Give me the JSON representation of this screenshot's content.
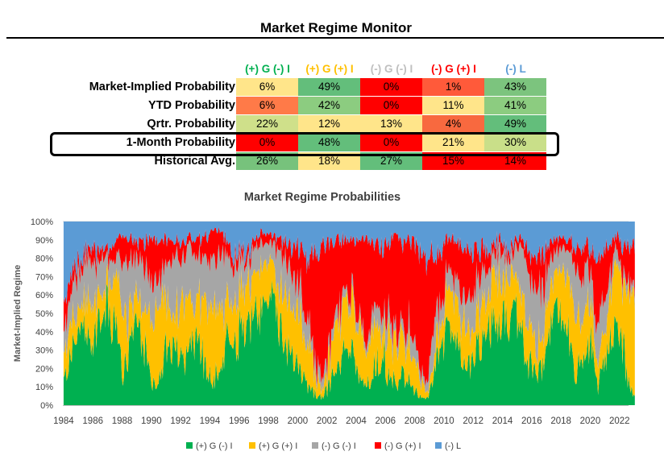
{
  "page_title": "Market Regime Monitor",
  "table": {
    "headers": [
      {
        "label": "(+) G (-) I",
        "color": "#00b050"
      },
      {
        "label": "(+) G (+) I",
        "color": "#ffc000"
      },
      {
        "label": "(-) G (-) I",
        "color": "#bfbfbf"
      },
      {
        "label": "(-) G (+) I",
        "color": "#ff0000"
      },
      {
        "label": "(-) L",
        "color": "#5b9bd5"
      }
    ],
    "rows": [
      {
        "label": "Market-Implied Probability",
        "values": [
          "6%",
          "49%",
          "0%",
          "1%",
          "43%"
        ],
        "colors": [
          "#ffe58a",
          "#63be7b",
          "#ff0000",
          "#ff5a3a",
          "#7cc47e"
        ]
      },
      {
        "label": "YTD Probability",
        "values": [
          "6%",
          "42%",
          "0%",
          "11%",
          "41%"
        ],
        "colors": [
          "#ff7a48",
          "#8ccc80",
          "#ff0000",
          "#ffe58a",
          "#8ccc80"
        ]
      },
      {
        "label": "Qrtr. Probability",
        "values": [
          "22%",
          "12%",
          "13%",
          "4%",
          "49%"
        ],
        "colors": [
          "#cfe08a",
          "#ffe58a",
          "#ffe58a",
          "#f8693f",
          "#63be7b"
        ]
      },
      {
        "label": "1-Month Probability",
        "values": [
          "0%",
          "48%",
          "0%",
          "21%",
          "30%"
        ],
        "colors": [
          "#ff0000",
          "#63be7b",
          "#ff0000",
          "#ffe58a",
          "#c9df89"
        ]
      },
      {
        "label": "Historical Avg.",
        "values": [
          "26%",
          "18%",
          "27%",
          "15%",
          "14%"
        ],
        "colors": [
          "#77c27c",
          "#ffe58a",
          "#63be7b",
          "#ff0000",
          "#ff0000"
        ]
      }
    ]
  },
  "chart_data": {
    "type": "area",
    "stacked": true,
    "title": "Market Regime Probabilities",
    "xlabel": "",
    "ylabel": "Market-Implied Regime",
    "xlim": [
      1984,
      2022.6
    ],
    "ylim": [
      0,
      100
    ],
    "x_ticks": [
      "1984",
      "1986",
      "1988",
      "1990",
      "1992",
      "1994",
      "1996",
      "1998",
      "2000",
      "2002",
      "2004",
      "2006",
      "2008",
      "2010",
      "2012",
      "2014",
      "2016",
      "2018",
      "2020",
      "2022"
    ],
    "y_ticks": [
      "0%",
      "10%",
      "20%",
      "30%",
      "40%",
      "50%",
      "60%",
      "70%",
      "80%",
      "90%",
      "100%"
    ],
    "x": [
      1984.0,
      1984.5,
      1985.0,
      1985.5,
      1986.0,
      1986.5,
      1987.0,
      1987.5,
      1988.0,
      1988.5,
      1989.0,
      1989.5,
      1990.0,
      1990.5,
      1991.0,
      1991.5,
      1992.0,
      1992.5,
      1993.0,
      1993.5,
      1994.0,
      1994.5,
      1995.0,
      1995.5,
      1996.0,
      1996.5,
      1997.0,
      1997.5,
      1998.0,
      1998.5,
      1999.0,
      1999.5,
      2000.0,
      2000.5,
      2001.0,
      2001.5,
      2002.0,
      2002.5,
      2003.0,
      2003.5,
      2004.0,
      2004.5,
      2005.0,
      2005.5,
      2006.0,
      2006.5,
      2007.0,
      2007.5,
      2008.0,
      2008.5,
      2009.0,
      2009.5,
      2010.0,
      2010.5,
      2011.0,
      2011.5,
      2012.0,
      2012.5,
      2013.0,
      2013.5,
      2014.0,
      2014.5,
      2015.0,
      2015.5,
      2016.0,
      2016.5,
      2017.0,
      2017.5,
      2018.0,
      2018.5,
      2019.0,
      2019.5,
      2020.0,
      2020.5,
      2021.0,
      2021.5,
      2022.0,
      2022.5
    ],
    "series": [
      {
        "name": "(+) G (-) I",
        "color": "#00b050",
        "values": [
          15,
          25,
          40,
          45,
          30,
          45,
          55,
          40,
          20,
          35,
          40,
          30,
          10,
          15,
          35,
          30,
          25,
          30,
          35,
          25,
          10,
          20,
          30,
          35,
          40,
          45,
          50,
          55,
          60,
          45,
          35,
          25,
          15,
          10,
          5,
          5,
          10,
          20,
          30,
          25,
          15,
          10,
          20,
          25,
          15,
          10,
          15,
          10,
          5,
          3,
          20,
          35,
          40,
          30,
          20,
          25,
          35,
          40,
          50,
          45,
          40,
          50,
          35,
          20,
          15,
          30,
          45,
          50,
          40,
          20,
          25,
          35,
          10,
          25,
          45,
          40,
          15,
          5
        ]
      },
      {
        "name": "(+) G (+) I",
        "color": "#ffc000",
        "values": [
          20,
          15,
          10,
          15,
          20,
          15,
          10,
          30,
          30,
          20,
          15,
          20,
          35,
          40,
          25,
          20,
          30,
          25,
          20,
          35,
          40,
          30,
          25,
          20,
          25,
          20,
          20,
          25,
          15,
          20,
          25,
          30,
          30,
          25,
          10,
          5,
          15,
          25,
          25,
          30,
          30,
          20,
          20,
          15,
          20,
          25,
          15,
          20,
          10,
          3,
          10,
          15,
          20,
          25,
          20,
          15,
          20,
          20,
          25,
          25,
          25,
          20,
          25,
          20,
          15,
          20,
          20,
          25,
          30,
          30,
          20,
          25,
          10,
          20,
          25,
          35,
          45,
          50
        ]
      },
      {
        "name": "(-) G (-) I",
        "color": "#a6a6a6",
        "values": [
          10,
          15,
          20,
          20,
          25,
          20,
          15,
          10,
          25,
          25,
          20,
          25,
          20,
          15,
          20,
          30,
          25,
          30,
          25,
          20,
          25,
          30,
          25,
          20,
          15,
          15,
          15,
          10,
          10,
          20,
          20,
          15,
          15,
          10,
          5,
          5,
          5,
          5,
          5,
          5,
          5,
          5,
          10,
          10,
          10,
          5,
          10,
          10,
          5,
          5,
          20,
          10,
          10,
          15,
          15,
          20,
          15,
          15,
          10,
          15,
          10,
          15,
          25,
          25,
          30,
          20,
          15,
          10,
          15,
          25,
          25,
          15,
          20,
          15,
          10,
          5,
          5,
          5
        ]
      },
      {
        "name": "(-) G (+) I",
        "color": "#ff0000",
        "values": [
          15,
          10,
          5,
          5,
          10,
          5,
          5,
          10,
          15,
          10,
          10,
          15,
          25,
          20,
          10,
          10,
          10,
          5,
          10,
          10,
          20,
          15,
          10,
          5,
          5,
          5,
          5,
          5,
          5,
          5,
          10,
          15,
          25,
          35,
          65,
          75,
          60,
          40,
          30,
          30,
          40,
          55,
          40,
          35,
          45,
          50,
          50,
          50,
          60,
          70,
          30,
          25,
          20,
          20,
          30,
          25,
          15,
          10,
          5,
          5,
          5,
          5,
          5,
          15,
          20,
          15,
          10,
          5,
          5,
          10,
          15,
          10,
          40,
          25,
          10,
          10,
          20,
          25
        ]
      },
      {
        "name": "(-) L",
        "color": "#5b9bd5",
        "values": [
          40,
          35,
          25,
          15,
          15,
          15,
          15,
          10,
          10,
          10,
          15,
          10,
          10,
          10,
          10,
          10,
          10,
          10,
          10,
          10,
          5,
          5,
          10,
          20,
          15,
          15,
          10,
          5,
          10,
          10,
          10,
          15,
          15,
          20,
          15,
          10,
          10,
          10,
          10,
          10,
          10,
          10,
          10,
          15,
          10,
          10,
          10,
          10,
          20,
          19,
          20,
          15,
          10,
          10,
          15,
          15,
          15,
          15,
          10,
          10,
          20,
          10,
          10,
          20,
          20,
          15,
          10,
          10,
          10,
          15,
          15,
          15,
          20,
          15,
          10,
          10,
          15,
          15
        ]
      }
    ]
  }
}
